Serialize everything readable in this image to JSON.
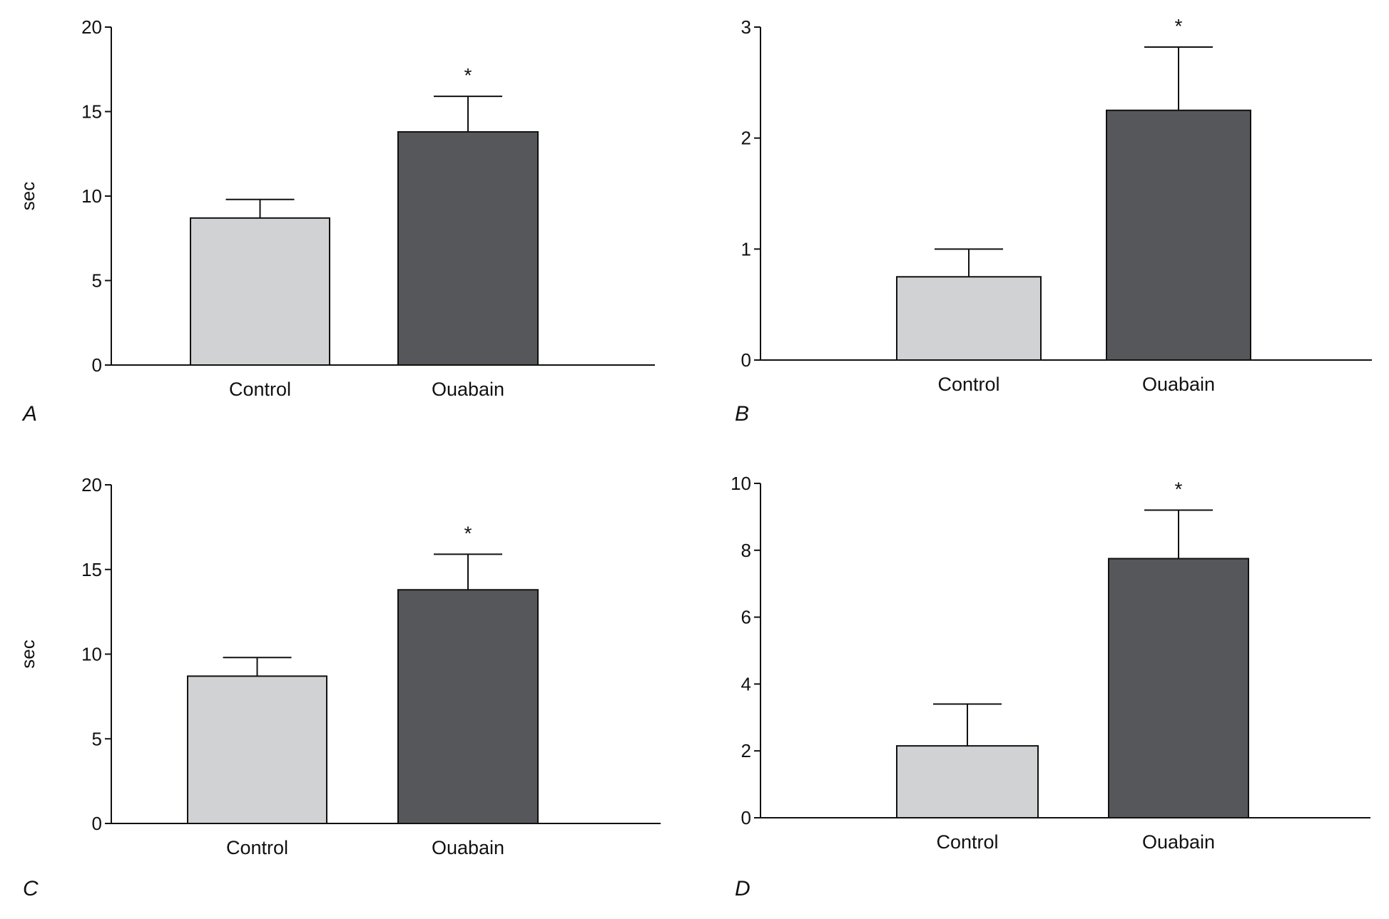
{
  "colors": {
    "control": "#d1d2d4",
    "ouabain": "#56575b",
    "axis": "#111111"
  },
  "chart_data": [
    {
      "panel": "A",
      "type": "bar",
      "categories": [
        "Control",
        "Ouabain"
      ],
      "values": [
        8.7,
        13.8
      ],
      "errors": [
        1.1,
        2.1
      ],
      "significance": [
        "",
        "*"
      ],
      "ylabel": "sec",
      "ylim": [
        0,
        20
      ],
      "yticks": [
        0,
        5,
        10,
        15,
        20
      ],
      "grid": false
    },
    {
      "panel": "B",
      "type": "bar",
      "categories": [
        "Control",
        "Ouabain"
      ],
      "values": [
        0.75,
        2.25
      ],
      "errors": [
        0.25,
        0.57
      ],
      "significance": [
        "",
        "*"
      ],
      "ylabel": "",
      "ylim": [
        0,
        3
      ],
      "yticks": [
        0,
        1,
        2,
        3
      ],
      "grid": false
    },
    {
      "panel": "C",
      "type": "bar",
      "categories": [
        "Control",
        "Ouabain"
      ],
      "values": [
        8.7,
        13.8
      ],
      "errors": [
        1.1,
        2.1
      ],
      "significance": [
        "",
        "*"
      ],
      "ylabel": "sec",
      "ylim": [
        0,
        20
      ],
      "yticks": [
        0,
        5,
        10,
        15,
        20
      ],
      "grid": false
    },
    {
      "panel": "D",
      "type": "bar",
      "categories": [
        "Control",
        "Ouabain"
      ],
      "values": [
        2.15,
        7.75
      ],
      "errors": [
        1.25,
        1.45
      ],
      "significance": [
        "",
        "*"
      ],
      "ylabel": "",
      "ylim": [
        0,
        10
      ],
      "yticks": [
        0,
        2,
        4,
        6,
        8,
        10
      ],
      "grid": false
    }
  ]
}
